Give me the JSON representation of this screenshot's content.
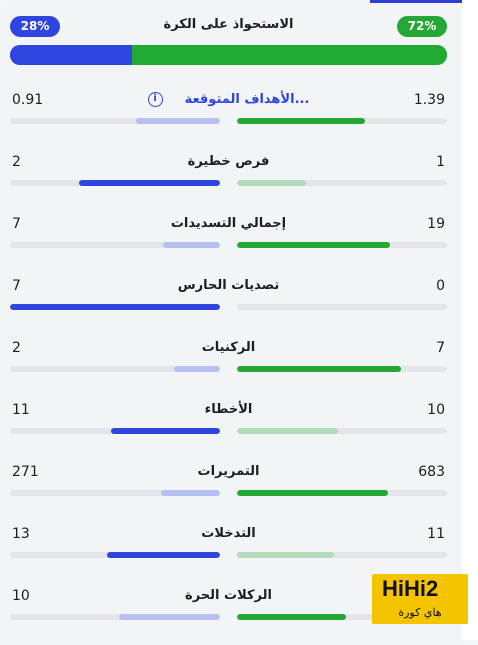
{
  "colors": {
    "home": "#23a836",
    "away": "#2f45e0",
    "home_light": "#b4dbbb",
    "away_light": "#b6bff0",
    "home_dim": "#b4dbbb",
    "away_dim": "#b6bff0"
  },
  "possession": {
    "title": "الاستحواذ على الكرة",
    "home_label": "72%",
    "away_label": "28%",
    "home_fraction": 0.72,
    "away_fraction": 0.28
  },
  "stats": [
    {
      "label": "الأهداف المتوقعة...",
      "home": "1.39",
      "away": "0.91",
      "home_fraction": 0.61,
      "away_fraction": 0.4,
      "leader": "home",
      "link": true,
      "info_icon": "info-icon"
    },
    {
      "label": "فرص خطيرة",
      "home": "1",
      "away": "2",
      "home_fraction": 0.33,
      "away_fraction": 0.67,
      "leader": "away",
      "link": false
    },
    {
      "label": "إجمالي التسديدات",
      "home": "19",
      "away": "7",
      "home_fraction": 0.73,
      "away_fraction": 0.27,
      "leader": "home",
      "link": false
    },
    {
      "label": "تصديات الحارس",
      "home": "0",
      "away": "7",
      "home_fraction": 0.0,
      "away_fraction": 1.0,
      "leader": "away",
      "link": false
    },
    {
      "label": "الركنيات",
      "home": "7",
      "away": "2",
      "home_fraction": 0.78,
      "away_fraction": 0.22,
      "leader": "home",
      "link": false
    },
    {
      "label": "الأخطاء",
      "home": "10",
      "away": "11",
      "home_fraction": 0.48,
      "away_fraction": 0.52,
      "leader": "away",
      "link": false
    },
    {
      "label": "التمريرات",
      "home": "683",
      "away": "271",
      "home_fraction": 0.72,
      "away_fraction": 0.28,
      "leader": "home",
      "link": false
    },
    {
      "label": "التدخلات",
      "home": "11",
      "away": "13",
      "home_fraction": 0.46,
      "away_fraction": 0.54,
      "leader": "away",
      "link": false
    },
    {
      "label": "الركلات الحرة",
      "home": "",
      "away": "10",
      "home_fraction": 0.52,
      "away_fraction": 0.48,
      "leader": "home",
      "link": false
    }
  ],
  "watermark": {
    "brand": "HiHi2",
    "subtitle": "هاي كورة"
  }
}
